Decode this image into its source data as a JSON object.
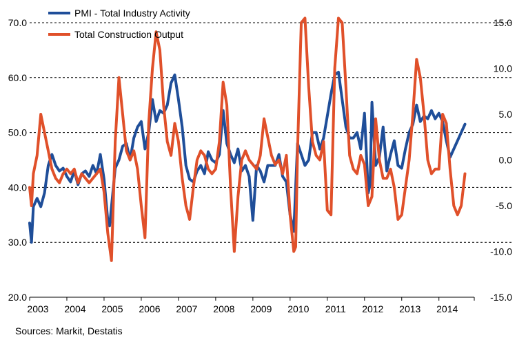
{
  "chart_data": {
    "type": "line",
    "x_axis": {
      "unit": "year",
      "range": [
        2003.0,
        2014.95
      ],
      "tick_labels": [
        "2003",
        "2004",
        "2005",
        "2006",
        "2007",
        "2008",
        "2009",
        "2010",
        "2011",
        "2012",
        "2013",
        "2014"
      ]
    },
    "y_left": {
      "range": [
        20.0,
        70.0
      ],
      "tick_labels": [
        "20.0",
        "30.0",
        "40.0",
        "50.0",
        "60.0",
        "70.0"
      ],
      "tick_values": [
        20,
        30,
        40,
        50,
        60,
        70
      ]
    },
    "y_right": {
      "range": [
        -15.0,
        15.0
      ],
      "tick_labels": [
        "-15.0",
        "-10.0",
        "-5.0",
        "0.0",
        "5.0",
        "10.0",
        "15.0"
      ],
      "tick_values": [
        -15,
        -10,
        -5,
        0,
        5,
        10,
        15
      ]
    },
    "grid": "horizontal dashed at left-axis ticks",
    "legend_placement": "top-left",
    "series": [
      {
        "name": "PMI - Total Industry Activity",
        "axis": "left",
        "color": "#1F4E99",
        "points": [
          [
            2003.0,
            33.5
          ],
          [
            2003.05,
            30.0
          ],
          [
            2003.1,
            36.5
          ],
          [
            2003.2,
            38.0
          ],
          [
            2003.3,
            36.5
          ],
          [
            2003.4,
            39.0
          ],
          [
            2003.5,
            44.0
          ],
          [
            2003.6,
            46.0
          ],
          [
            2003.7,
            44.0
          ],
          [
            2003.8,
            43.0
          ],
          [
            2003.9,
            43.5
          ],
          [
            2004.0,
            42.0
          ],
          [
            2004.1,
            41.0
          ],
          [
            2004.2,
            43.0
          ],
          [
            2004.3,
            40.5
          ],
          [
            2004.4,
            42.5
          ],
          [
            2004.5,
            43.0
          ],
          [
            2004.6,
            42.0
          ],
          [
            2004.7,
            44.0
          ],
          [
            2004.8,
            42.5
          ],
          [
            2004.9,
            46.0
          ],
          [
            2005.0,
            41.5
          ],
          [
            2005.1,
            34.0
          ],
          [
            2005.15,
            33.0
          ],
          [
            2005.3,
            43.5
          ],
          [
            2005.4,
            45.0
          ],
          [
            2005.5,
            47.5
          ],
          [
            2005.6,
            48.0
          ],
          [
            2005.7,
            45.0
          ],
          [
            2005.8,
            49.0
          ],
          [
            2005.9,
            51.0
          ],
          [
            2006.0,
            52.0
          ],
          [
            2006.1,
            47.0
          ],
          [
            2006.2,
            50.0
          ],
          [
            2006.3,
            56.0
          ],
          [
            2006.4,
            52.0
          ],
          [
            2006.5,
            54.0
          ],
          [
            2006.6,
            53.5
          ],
          [
            2006.7,
            55.0
          ],
          [
            2006.8,
            59.0
          ],
          [
            2006.9,
            60.5
          ],
          [
            2007.0,
            56.0
          ],
          [
            2007.1,
            51.0
          ],
          [
            2007.2,
            44.0
          ],
          [
            2007.3,
            41.5
          ],
          [
            2007.4,
            41.0
          ],
          [
            2007.5,
            43.0
          ],
          [
            2007.6,
            44.0
          ],
          [
            2007.7,
            42.5
          ],
          [
            2007.8,
            46.5
          ],
          [
            2007.9,
            45.0
          ],
          [
            2008.0,
            44.5
          ],
          [
            2008.1,
            46.0
          ],
          [
            2008.2,
            54.0
          ],
          [
            2008.3,
            48.0
          ],
          [
            2008.4,
            46.0
          ],
          [
            2008.5,
            44.5
          ],
          [
            2008.6,
            47.0
          ],
          [
            2008.7,
            43.0
          ],
          [
            2008.8,
            44.0
          ],
          [
            2008.9,
            42.0
          ],
          [
            2009.0,
            34.0
          ],
          [
            2009.1,
            44.0
          ],
          [
            2009.2,
            43.0
          ],
          [
            2009.3,
            41.0
          ],
          [
            2009.4,
            44.0
          ],
          [
            2009.5,
            44.0
          ],
          [
            2009.6,
            44.0
          ],
          [
            2009.7,
            46.0
          ],
          [
            2009.8,
            42.0
          ],
          [
            2009.9,
            41.0
          ],
          [
            2010.0,
            35.0
          ],
          [
            2010.1,
            32.0
          ],
          [
            2010.2,
            48.0
          ],
          [
            2010.3,
            46.0
          ],
          [
            2010.4,
            44.0
          ],
          [
            2010.5,
            45.0
          ],
          [
            2010.6,
            50.0
          ],
          [
            2010.7,
            50.0
          ],
          [
            2010.8,
            47.0
          ],
          [
            2010.9,
            49.0
          ],
          [
            2011.0,
            53.0
          ],
          [
            2011.1,
            57.0
          ],
          [
            2011.2,
            60.5
          ],
          [
            2011.3,
            61.0
          ],
          [
            2011.4,
            56.0
          ],
          [
            2011.5,
            51.0
          ],
          [
            2011.6,
            49.0
          ],
          [
            2011.7,
            49.0
          ],
          [
            2011.8,
            50.0
          ],
          [
            2011.9,
            47.0
          ],
          [
            2012.0,
            53.5
          ],
          [
            2012.1,
            39.0
          ],
          [
            2012.15,
            40.5
          ],
          [
            2012.2,
            55.5
          ],
          [
            2012.3,
            44.0
          ],
          [
            2012.4,
            45.5
          ],
          [
            2012.5,
            51.0
          ],
          [
            2012.6,
            43.0
          ],
          [
            2012.7,
            46.0
          ],
          [
            2012.8,
            48.5
          ],
          [
            2012.9,
            44.0
          ],
          [
            2013.0,
            43.5
          ],
          [
            2013.1,
            47.0
          ],
          [
            2013.2,
            50.0
          ],
          [
            2013.3,
            51.5
          ],
          [
            2013.4,
            55.0
          ],
          [
            2013.5,
            52.0
          ],
          [
            2013.6,
            53.0
          ],
          [
            2013.7,
            52.5
          ],
          [
            2013.8,
            54.0
          ],
          [
            2013.9,
            52.5
          ],
          [
            2014.0,
            53.5
          ],
          [
            2014.1,
            52.0
          ],
          [
            2014.2,
            48.5
          ],
          [
            2014.3,
            45.5
          ],
          [
            2014.4,
            47.0
          ],
          [
            2014.5,
            48.5
          ],
          [
            2014.6,
            50.0
          ],
          [
            2014.7,
            51.5
          ]
        ]
      },
      {
        "name": "Total Construction Output",
        "axis": "right",
        "color": "#E0502A",
        "points": [
          [
            2003.0,
            -3.0
          ],
          [
            2003.05,
            -5.0
          ],
          [
            2003.1,
            -1.5
          ],
          [
            2003.2,
            0.5
          ],
          [
            2003.3,
            5.0
          ],
          [
            2003.4,
            3.0
          ],
          [
            2003.5,
            1.0
          ],
          [
            2003.6,
            -1.0
          ],
          [
            2003.7,
            -2.0
          ],
          [
            2003.8,
            -2.5
          ],
          [
            2003.9,
            -1.5
          ],
          [
            2004.0,
            -1.0
          ],
          [
            2004.1,
            -1.5
          ],
          [
            2004.2,
            -1.0
          ],
          [
            2004.3,
            -2.5
          ],
          [
            2004.4,
            -1.5
          ],
          [
            2004.5,
            -2.0
          ],
          [
            2004.6,
            -2.5
          ],
          [
            2004.7,
            -2.0
          ],
          [
            2004.8,
            -1.5
          ],
          [
            2004.9,
            -1.0
          ],
          [
            2005.0,
            -3.5
          ],
          [
            2005.1,
            -8.0
          ],
          [
            2005.2,
            -11.0
          ],
          [
            2005.3,
            2.0
          ],
          [
            2005.4,
            9.0
          ],
          [
            2005.5,
            5.0
          ],
          [
            2005.6,
            1.0
          ],
          [
            2005.7,
            0.0
          ],
          [
            2005.8,
            1.0
          ],
          [
            2005.9,
            -1.0
          ],
          [
            2006.0,
            -5.0
          ],
          [
            2006.1,
            -8.5
          ],
          [
            2006.2,
            4.0
          ],
          [
            2006.3,
            10.0
          ],
          [
            2006.4,
            14.0
          ],
          [
            2006.5,
            12.0
          ],
          [
            2006.6,
            6.0
          ],
          [
            2006.7,
            2.0
          ],
          [
            2006.8,
            0.5
          ],
          [
            2006.9,
            4.0
          ],
          [
            2007.0,
            2.0
          ],
          [
            2007.1,
            -2.0
          ],
          [
            2007.2,
            -5.0
          ],
          [
            2007.3,
            -6.5
          ],
          [
            2007.4,
            -3.0
          ],
          [
            2007.5,
            0.0
          ],
          [
            2007.6,
            1.0
          ],
          [
            2007.7,
            0.5
          ],
          [
            2007.8,
            -1.0
          ],
          [
            2007.9,
            -1.5
          ],
          [
            2008.0,
            -1.0
          ],
          [
            2008.1,
            2.0
          ],
          [
            2008.2,
            8.5
          ],
          [
            2008.3,
            6.0
          ],
          [
            2008.4,
            -3.0
          ],
          [
            2008.5,
            -10.0
          ],
          [
            2008.6,
            -4.0
          ],
          [
            2008.7,
            0.0
          ],
          [
            2008.8,
            1.0
          ],
          [
            2008.9,
            0.0
          ],
          [
            2009.0,
            -0.5
          ],
          [
            2009.1,
            -1.0
          ],
          [
            2009.2,
            0.5
          ],
          [
            2009.3,
            4.5
          ],
          [
            2009.4,
            2.5
          ],
          [
            2009.5,
            0.5
          ],
          [
            2009.6,
            -0.5
          ],
          [
            2009.7,
            0.0
          ],
          [
            2009.8,
            -1.5
          ],
          [
            2009.9,
            0.5
          ],
          [
            2010.0,
            -6.0
          ],
          [
            2010.1,
            -10.0
          ],
          [
            2010.15,
            -9.5
          ],
          [
            2010.2,
            1.0
          ],
          [
            2010.3,
            15.0
          ],
          [
            2010.4,
            15.5
          ],
          [
            2010.5,
            8.0
          ],
          [
            2010.6,
            2.0
          ],
          [
            2010.7,
            0.5
          ],
          [
            2010.8,
            0.0
          ],
          [
            2010.9,
            2.0
          ],
          [
            2011.0,
            -5.5
          ],
          [
            2011.1,
            -6.0
          ],
          [
            2011.2,
            10.0
          ],
          [
            2011.3,
            15.5
          ],
          [
            2011.4,
            15.0
          ],
          [
            2011.5,
            8.0
          ],
          [
            2011.6,
            0.5
          ],
          [
            2011.7,
            -1.0
          ],
          [
            2011.8,
            -1.5
          ],
          [
            2011.9,
            0.5
          ],
          [
            2012.0,
            -0.5
          ],
          [
            2012.1,
            -5.0
          ],
          [
            2012.2,
            -4.0
          ],
          [
            2012.3,
            4.5
          ],
          [
            2012.4,
            0.0
          ],
          [
            2012.5,
            -2.0
          ],
          [
            2012.6,
            -2.0
          ],
          [
            2012.7,
            -1.0
          ],
          [
            2012.8,
            -3.0
          ],
          [
            2012.9,
            -6.5
          ],
          [
            2013.0,
            -6.0
          ],
          [
            2013.1,
            -3.0
          ],
          [
            2013.2,
            0.0
          ],
          [
            2013.3,
            5.0
          ],
          [
            2013.4,
            11.0
          ],
          [
            2013.5,
            9.0
          ],
          [
            2013.6,
            5.0
          ],
          [
            2013.7,
            0.0
          ],
          [
            2013.8,
            -1.5
          ],
          [
            2013.9,
            -1.0
          ],
          [
            2014.0,
            -1.0
          ],
          [
            2014.1,
            5.0
          ],
          [
            2014.2,
            4.0
          ],
          [
            2014.3,
            -1.0
          ],
          [
            2014.4,
            -5.0
          ],
          [
            2014.5,
            -6.0
          ],
          [
            2014.6,
            -5.0
          ],
          [
            2014.7,
            -1.5
          ]
        ]
      }
    ]
  },
  "source_note": "Sources: Markit, Destatis"
}
